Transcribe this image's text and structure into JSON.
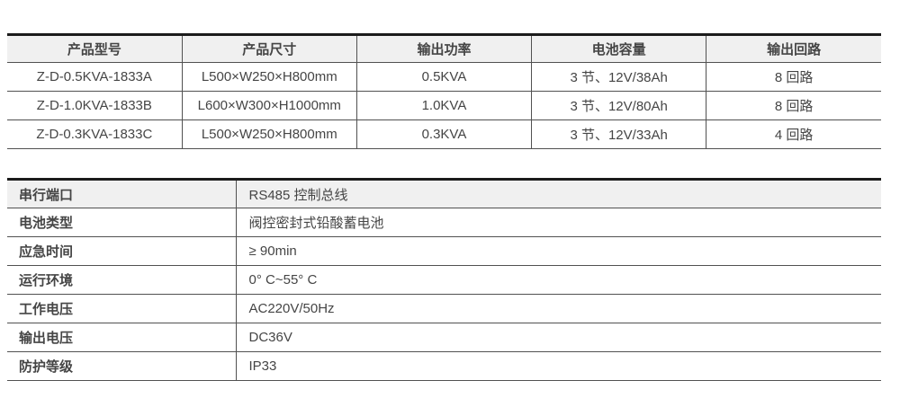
{
  "colors": {
    "top_border": "#1b1b1b",
    "grid_line": "#515151",
    "header_bg": "#f0f0f0",
    "text": "#454545",
    "page_bg": "#ffffff"
  },
  "products_table": {
    "headers": [
      "产品型号",
      "产品尺寸",
      "输出功率",
      "电池容量",
      "输出回路"
    ],
    "rows": [
      [
        "Z-D-0.5KVA-1833A",
        "L500×W250×H800mm",
        "0.5KVA",
        "3 节、12V/38Ah",
        "8 回路"
      ],
      [
        "Z-D-1.0KVA-1833B",
        "L600×W300×H1000mm",
        "1.0KVA",
        "3 节、12V/80Ah",
        "8 回路"
      ],
      [
        "Z-D-0.3KVA-1833C",
        "L500×W250×H800mm",
        "0.3KVA",
        "3 节、12V/33Ah",
        "4 回路"
      ]
    ]
  },
  "specs_table": {
    "rows": [
      {
        "label": "串行端口",
        "value": "RS485 控制总线"
      },
      {
        "label": "电池类型",
        "value": "阀控密封式铅酸蓄电池"
      },
      {
        "label": "应急时间",
        "value": "≥ 90min"
      },
      {
        "label": "运行环境",
        "value": "0° C~55° C"
      },
      {
        "label": "工作电压",
        "value": "AC220V/50Hz"
      },
      {
        "label": "输出电压",
        "value": "DC36V"
      },
      {
        "label": "防护等级",
        "value": "IP33"
      }
    ]
  }
}
